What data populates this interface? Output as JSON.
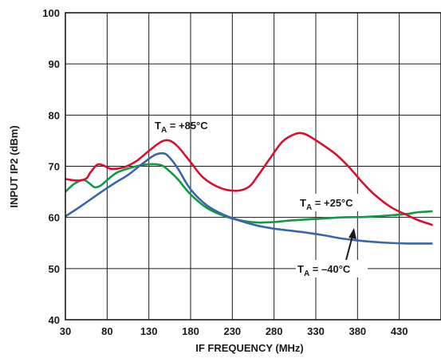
{
  "chart_data": {
    "type": "line",
    "xlabel": "IF FREQUENCY (MHz)",
    "ylabel": "INPUT IP2 (dBm)",
    "xlim": [
      30,
      480
    ],
    "ylim": [
      40,
      100
    ],
    "x_ticks": [
      "30",
      "80",
      "130",
      "180",
      "230",
      "280",
      "330",
      "380",
      "430"
    ],
    "y_ticks": [
      "40",
      "50",
      "60",
      "70",
      "80",
      "90",
      "100"
    ],
    "grid": true,
    "colors": {
      "plus85": "#d7102f",
      "plus25": "#109a45",
      "minus40": "#3a65a8"
    },
    "series": [
      {
        "name": "TA = +85°C",
        "color": "#d7102f",
        "x": [
          30,
          45,
          55,
          60,
          68,
          75,
          85,
          100,
          115,
          130,
          145,
          155,
          165,
          180,
          195,
          215,
          235,
          250,
          260,
          275,
          290,
          305,
          315,
          325,
          340,
          355,
          370,
          385,
          400,
          420,
          440,
          452,
          470
        ],
        "y": [
          67.5,
          67.2,
          67.6,
          68.8,
          70.3,
          70.2,
          69.5,
          69.8,
          71.0,
          73.0,
          74.8,
          75.0,
          73.8,
          70.8,
          67.8,
          65.8,
          65.2,
          66.0,
          68.0,
          71.5,
          74.8,
          76.3,
          76.4,
          75.6,
          74.0,
          72.2,
          69.8,
          67.0,
          64.5,
          62.0,
          60.4,
          59.5,
          58.5
        ]
      },
      {
        "name": "TA = +25°C",
        "color": "#109a45",
        "x": [
          30,
          40,
          50,
          55,
          60,
          65,
          72,
          80,
          90,
          100,
          115,
          130,
          145,
          155,
          165,
          180,
          200,
          220,
          240,
          260,
          280,
          300,
          330,
          360,
          390,
          420,
          440,
          452,
          470
        ],
        "y": [
          65.0,
          66.5,
          67.3,
          67.1,
          66.5,
          65.9,
          66.2,
          67.3,
          68.6,
          69.3,
          70.0,
          70.4,
          70.2,
          69.0,
          67.4,
          64.5,
          61.8,
          60.3,
          59.4,
          59.0,
          59.1,
          59.4,
          59.7,
          60.0,
          60.1,
          60.4,
          60.7,
          61.0,
          61.2
        ]
      },
      {
        "name": "TA = –40°C",
        "color": "#3a65a8",
        "x": [
          30,
          45,
          60,
          75,
          90,
          105,
          120,
          135,
          143,
          150,
          157,
          165,
          180,
          200,
          220,
          240,
          260,
          280,
          300,
          320,
          340,
          360,
          380,
          400,
          420,
          440,
          452,
          470
        ],
        "y": [
          60.2,
          61.8,
          63.5,
          65.2,
          66.8,
          68.3,
          70.2,
          72.0,
          72.5,
          72.4,
          71.3,
          69.5,
          65.5,
          62.3,
          60.5,
          59.3,
          58.4,
          57.8,
          57.4,
          57.0,
          56.5,
          55.9,
          55.5,
          55.2,
          55.0,
          54.9,
          54.9,
          54.9
        ]
      }
    ],
    "annotations": [
      {
        "main": "T",
        "sub": "A",
        "rest": " = +85°C"
      },
      {
        "main": "T",
        "sub": "A",
        "rest": " = +25°C"
      },
      {
        "main": "T",
        "sub": "A",
        "rest": " = –40°C"
      }
    ]
  }
}
